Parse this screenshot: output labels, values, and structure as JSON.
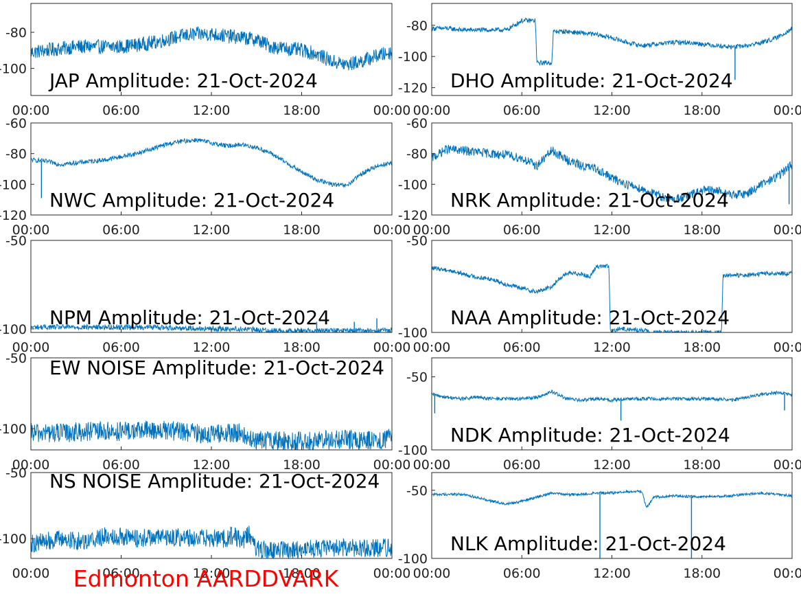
{
  "footer": {
    "label": "Edmonton AARDDVARK",
    "color": "#ff0000"
  },
  "colors": {
    "trace": "#0072bd",
    "axis": "#262626",
    "text": "#000000"
  },
  "chart_data": [
    {
      "type": "line",
      "title": "JAP Amplitude: 21-Oct-2024",
      "x_ticks": [
        "00:00",
        "06:00",
        "12:00",
        "18:00",
        "00:00"
      ],
      "y_ticks": [
        -80,
        -100
      ],
      "ylim": [
        -115,
        -64
      ],
      "x_hours": [
        0,
        1,
        2,
        3,
        4,
        5,
        6,
        7,
        8,
        9,
        10,
        11,
        12,
        13,
        14,
        15,
        16,
        17,
        18,
        19,
        20,
        21,
        22,
        23,
        24
      ],
      "series": [
        {
          "values": [
            -91,
            -90,
            -89,
            -88,
            -88,
            -88,
            -88,
            -87,
            -86,
            -84,
            -82,
            -81,
            -81,
            -82,
            -83,
            -84,
            -88,
            -89,
            -90,
            -92,
            -96,
            -98,
            -96,
            -93,
            -91
          ],
          "noise": 4
        }
      ],
      "spikes": []
    },
    {
      "type": "line",
      "title": "DHO Amplitude: 21-Oct-2024",
      "x_ticks": [
        "00:00",
        "06:00",
        "12:00",
        "18:00",
        "00:00"
      ],
      "y_ticks": [
        -80,
        -100,
        -120
      ],
      "ylim": [
        -125,
        -66
      ],
      "x_hours": [
        0,
        1,
        2,
        3,
        4,
        5,
        6,
        6.9,
        7,
        8,
        8.1,
        9,
        10,
        11,
        12,
        13,
        14,
        15,
        16,
        17,
        18,
        19,
        20,
        21,
        22,
        23,
        24
      ],
      "series": [
        {
          "values": [
            -82,
            -82,
            -83,
            -83,
            -83,
            -83,
            -77,
            -77,
            -104,
            -104,
            -84,
            -84,
            -85,
            -86,
            -88,
            -91,
            -93,
            -92,
            -91,
            -91,
            -92,
            -93,
            -94,
            -93,
            -91,
            -88,
            -82
          ],
          "noise": 1.5
        }
      ],
      "spikes": [
        {
          "x": 20.2,
          "y": -115
        }
      ]
    },
    {
      "type": "line",
      "title": "NWC Amplitude: 21-Oct-2024",
      "x_ticks": [
        "00:00",
        "06:00",
        "12:00",
        "18:00",
        "00:00"
      ],
      "y_ticks": [
        -60,
        -80,
        -100,
        -120
      ],
      "ylim": [
        -120,
        -60
      ],
      "x_hours": [
        0,
        1,
        2,
        3,
        4,
        5,
        6,
        7,
        8,
        9,
        10,
        11,
        12,
        13,
        14,
        15,
        16,
        17,
        18,
        19,
        20,
        21,
        22,
        23,
        24
      ],
      "series": [
        {
          "values": [
            -84,
            -85,
            -87,
            -86,
            -85,
            -84,
            -82,
            -80,
            -77,
            -74,
            -72,
            -71,
            -73,
            -75,
            -74,
            -76,
            -80,
            -86,
            -92,
            -97,
            -100,
            -101,
            -93,
            -88,
            -86
          ],
          "noise": 1.5
        }
      ],
      "spikes": [
        {
          "x": 0.7,
          "y": -109
        }
      ]
    },
    {
      "type": "line",
      "title": "NRK Amplitude: 21-Oct-2024",
      "x_ticks": [
        "00:00",
        "06:00",
        "12:00",
        "18:00",
        "00:00"
      ],
      "y_ticks": [
        -60,
        -80,
        -100,
        -120
      ],
      "ylim": [
        -120,
        -60
      ],
      "x_hours": [
        0,
        1,
        2,
        3,
        4,
        5,
        6,
        7,
        8,
        9,
        10,
        11,
        12,
        13,
        14,
        15,
        16,
        17,
        18,
        19,
        20,
        21,
        22,
        23,
        24
      ],
      "series": [
        {
          "values": [
            -83,
            -77,
            -78,
            -79,
            -80,
            -81,
            -83,
            -88,
            -78,
            -84,
            -88,
            -90,
            -96,
            -100,
            -103,
            -107,
            -110,
            -108,
            -104,
            -104,
            -107,
            -106,
            -100,
            -95,
            -87
          ],
          "noise": 3
        }
      ],
      "spikes": [
        {
          "x": 23.8,
          "y": -113
        }
      ]
    },
    {
      "type": "line",
      "title": "NPM Amplitude: 21-Oct-2024",
      "x_ticks": [
        "00:00",
        "06:00",
        "12:00",
        "18:00",
        "00:00"
      ],
      "y_ticks": [
        -50,
        -100
      ],
      "ylim": [
        -102,
        -50
      ],
      "x_hours": [
        0,
        4,
        8,
        12,
        14,
        16,
        20,
        24
      ],
      "series": [
        {
          "values": [
            -99,
            -99,
            -99,
            -100,
            -100,
            -101,
            -101,
            -101
          ],
          "noise": 1.5
        }
      ],
      "spikes": [
        {
          "x": 23,
          "y": -94
        },
        {
          "x": 21.5,
          "y": -96
        },
        {
          "x": 19,
          "y": -96
        }
      ]
    },
    {
      "type": "line",
      "title": "NAA Amplitude: 21-Oct-2024",
      "x_ticks": [
        "00:00",
        "06:00",
        "12:00",
        "18:00",
        "00:00"
      ],
      "y_ticks": [
        -50,
        -100
      ],
      "ylim": [
        -100,
        -50
      ],
      "x_hours": [
        0,
        1,
        2,
        3,
        4,
        5,
        6,
        7,
        8,
        8.6,
        9,
        10,
        10.5,
        11,
        11.8,
        11.9,
        12.5,
        14.3,
        14.4,
        19.3,
        19.4,
        21,
        22,
        23,
        24
      ],
      "series": [
        {
          "values": [
            -65,
            -66,
            -68,
            -70,
            -71,
            -74,
            -76,
            -78,
            -75,
            -70,
            -68,
            -68,
            -70,
            -64,
            -64,
            -100,
            -98,
            -99,
            -100,
            -100,
            -69,
            -69,
            -68,
            -68,
            -68
          ],
          "noise": 1.2
        }
      ],
      "spikes": []
    },
    {
      "type": "line",
      "title": "EW NOISE Amplitude: 21-Oct-2024",
      "x_ticks": [
        "00:00",
        "06:00",
        "12:00",
        "18:00",
        "00:00"
      ],
      "y_ticks": [
        -50,
        -100
      ],
      "ylim": [
        -115,
        -50
      ],
      "x_hours": [
        0,
        2,
        4,
        6,
        8,
        10,
        12,
        14,
        14.5,
        16,
        18,
        20,
        22,
        24
      ],
      "series": [
        {
          "values": [
            -103,
            -103,
            -102,
            -102,
            -101,
            -102,
            -104,
            -103,
            -108,
            -109,
            -109,
            -108,
            -108,
            -107
          ],
          "noise": 7
        }
      ],
      "spikes": []
    },
    {
      "type": "line",
      "title": "NDK Amplitude: 21-Oct-2024",
      "x_ticks": [
        "00:00",
        "06:00",
        "12:00",
        "18:00",
        "00:00"
      ],
      "y_ticks": [
        -50,
        -100
      ],
      "ylim": [
        -100,
        -37
      ],
      "x_hours": [
        0,
        1,
        2,
        3,
        4,
        5,
        6,
        7,
        8,
        9,
        10,
        11,
        12,
        13,
        14,
        15,
        16,
        17,
        18,
        19,
        20,
        21,
        22,
        23,
        24
      ],
      "series": [
        {
          "values": [
            -62,
            -64,
            -65,
            -64,
            -65,
            -65,
            -65,
            -64,
            -60,
            -65,
            -66,
            -65,
            -66,
            -65,
            -65,
            -65,
            -65,
            -65,
            -65,
            -65,
            -66,
            -64,
            -62,
            -61,
            -62
          ],
          "noise": 1.2
        }
      ],
      "spikes": [
        {
          "x": 0.2,
          "y": -75
        },
        {
          "x": 12.6,
          "y": -80
        },
        {
          "x": 23.5,
          "y": -73
        }
      ]
    },
    {
      "type": "line",
      "title": "NS NOISE Amplitude: 21-Oct-2024",
      "x_ticks": [
        "00:00",
        "06:00",
        "12:00",
        "18:00",
        "00:00"
      ],
      "y_ticks": [
        -50,
        -100
      ],
      "ylim": [
        -115,
        -50
      ],
      "x_hours": [
        0,
        2,
        3,
        4,
        5,
        6,
        7,
        8,
        10,
        12,
        13,
        13.5,
        14,
        14.5,
        15,
        16,
        18,
        20,
        22,
        24
      ],
      "series": [
        {
          "values": [
            -104,
            -100,
            -102,
            -101,
            -98,
            -98,
            -100,
            -99,
            -99,
            -100,
            -100,
            -97,
            -102,
            -97,
            -108,
            -109,
            -108,
            -107,
            -107,
            -107
          ],
          "noise": 7
        }
      ],
      "spikes": []
    },
    {
      "type": "line",
      "title": "NLK Amplitude: 21-Oct-2024",
      "x_ticks": [
        "00:00",
        "06:00",
        "12:00",
        "18:00",
        "00:00"
      ],
      "y_ticks": [
        -50,
        -100
      ],
      "ylim": [
        -100,
        -37
      ],
      "x_hours": [
        0,
        2,
        3,
        4,
        5,
        6,
        7,
        8,
        8.3,
        9,
        10,
        11,
        12,
        13,
        14,
        14.3,
        14.8,
        16,
        18,
        20,
        22,
        24
      ],
      "series": [
        {
          "values": [
            -53,
            -53,
            -55,
            -58,
            -60,
            -58,
            -55,
            -52,
            -52,
            -53,
            -53,
            -52,
            -52,
            -51,
            -51,
            -63,
            -55,
            -54,
            -55,
            -54,
            -52,
            -54
          ],
          "noise": 1
        }
      ],
      "spikes": [
        {
          "x": 11.2,
          "y": -100
        },
        {
          "x": 17.3,
          "y": -100
        }
      ]
    }
  ]
}
